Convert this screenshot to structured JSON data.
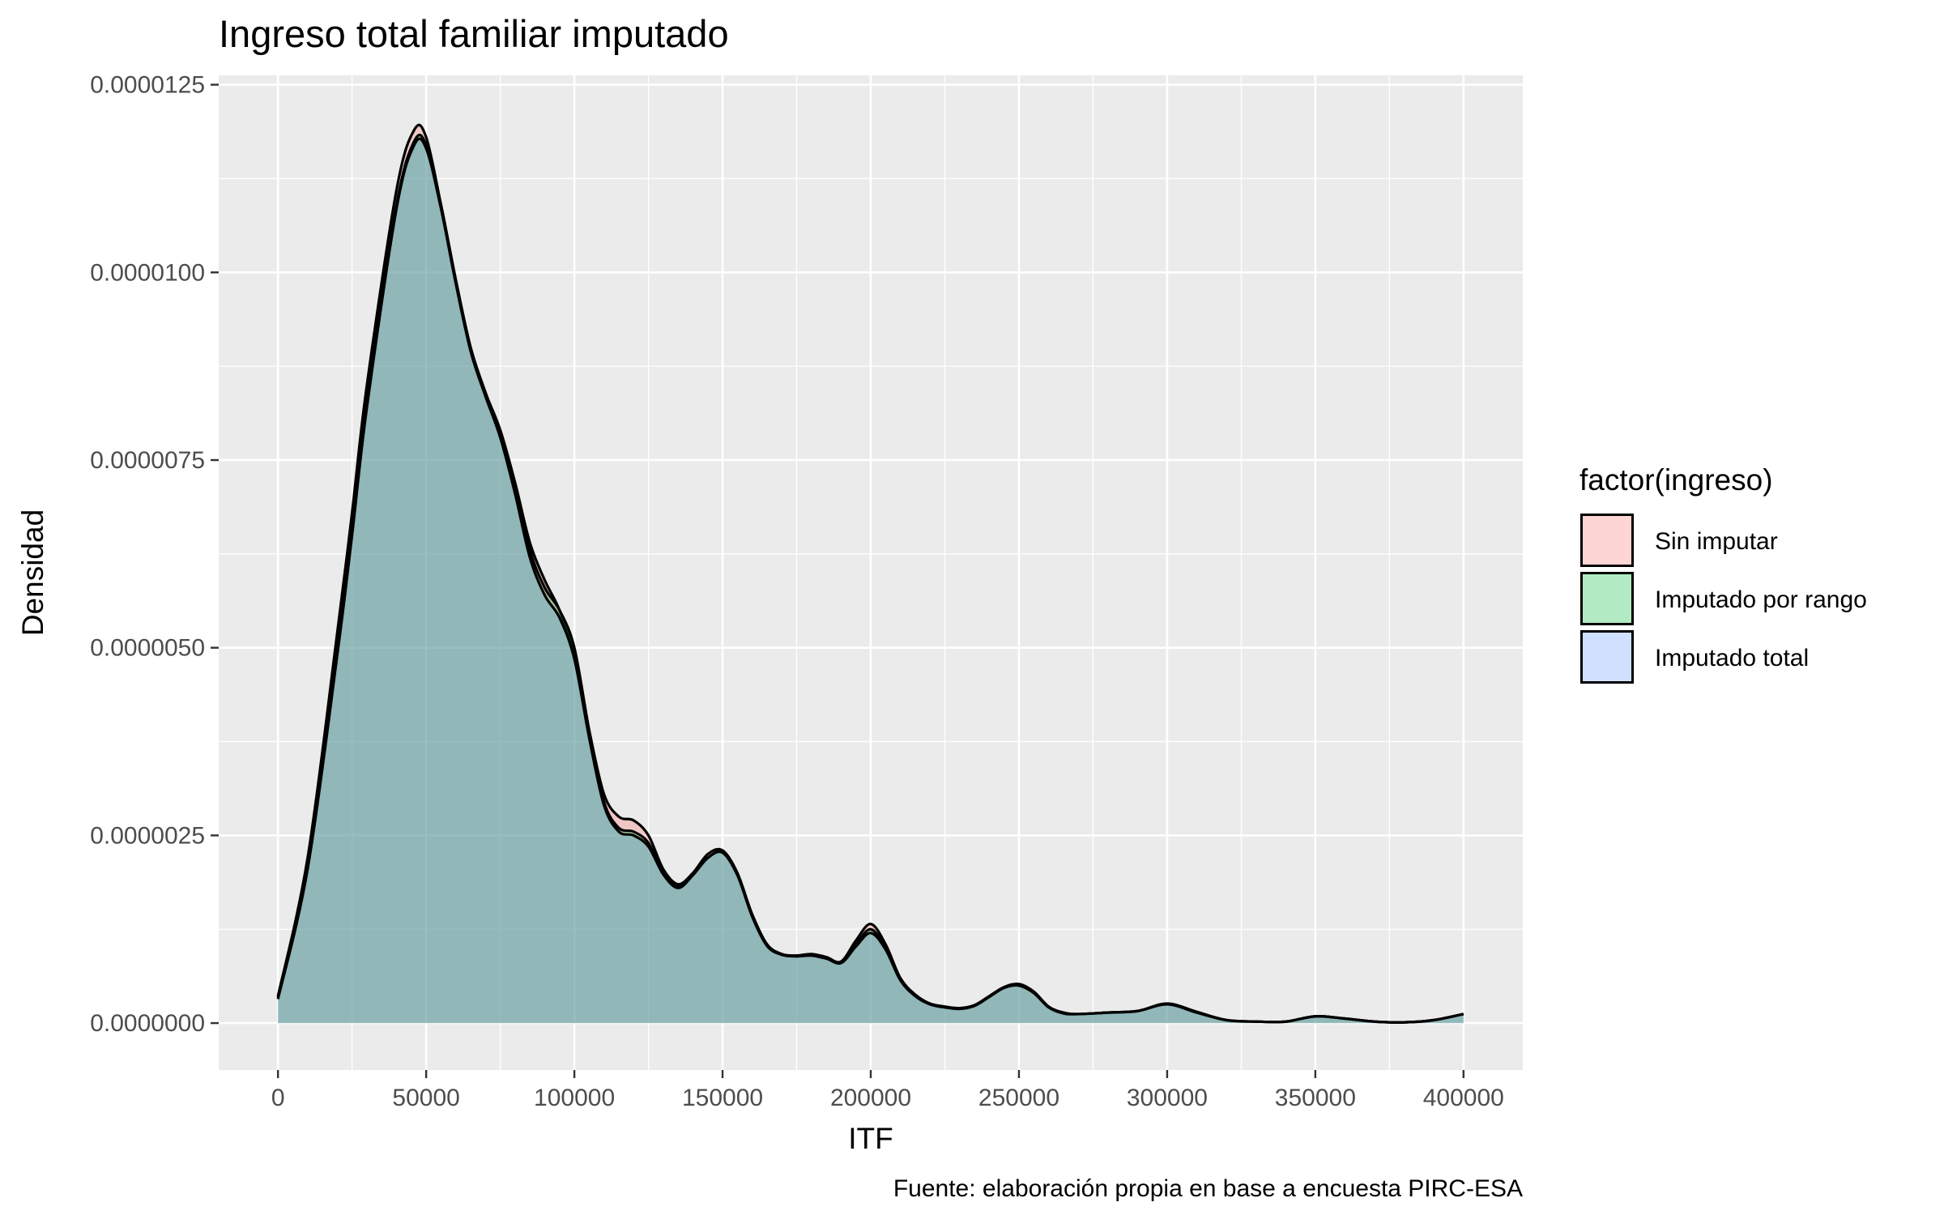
{
  "chart_data": {
    "type": "area",
    "title": "Ingreso total familiar imputado",
    "xlabel": "ITF",
    "ylabel": "Densidad",
    "caption": "Fuente: elaboración propia en base a encuesta PIRC-ESA",
    "xlim": [
      -20000,
      420000
    ],
    "ylim": [
      -6.25e-07,
      1.2625e-05
    ],
    "x_ticks": [
      0,
      50000,
      100000,
      150000,
      200000,
      250000,
      300000,
      350000,
      400000
    ],
    "x_tick_labels": [
      "0",
      "50000",
      "100000",
      "150000",
      "200000",
      "250000",
      "300000",
      "350000",
      "400000"
    ],
    "y_ticks": [
      0,
      2.5e-06,
      5e-06,
      7.5e-06,
      1e-05,
      1.25e-05
    ],
    "y_tick_labels": [
      "0.0000000",
      "0.0000025",
      "0.0000050",
      "0.0000075",
      "0.0000100",
      "0.0000125"
    ],
    "grid": true,
    "legend": {
      "title": "factor(ingreso)",
      "position": "right"
    },
    "series": [
      {
        "name": "Sin imputar",
        "fill": "#F8766D",
        "x": [
          0,
          10000,
          20000,
          25000,
          30000,
          40000,
          46000,
          50000,
          55000,
          60000,
          65000,
          70000,
          75000,
          80000,
          85000,
          90000,
          95000,
          100000,
          105000,
          110000,
          115000,
          120000,
          125000,
          130000,
          135000,
          140000,
          145000,
          150000,
          155000,
          160000,
          165000,
          170000,
          175000,
          180000,
          185000,
          190000,
          195000,
          200000,
          205000,
          210000,
          215000,
          220000,
          225000,
          230000,
          235000,
          240000,
          245000,
          250000,
          255000,
          260000,
          265000,
          270000,
          280000,
          290000,
          300000,
          310000,
          320000,
          330000,
          340000,
          350000,
          360000,
          370000,
          380000,
          390000,
          400000
        ],
        "y": [
          3.6e-07,
          2.2e-06,
          5.2e-06,
          6.8e-06,
          8.5e-06,
          1.11e-05,
          1.19e-05,
          1.18e-05,
          1.09e-05,
          9.9e-06,
          9e-06,
          8.4e-06,
          7.9e-06,
          7.2e-06,
          6.4e-06,
          5.9e-06,
          5.5e-06,
          4.9e-06,
          3.9e-06,
          3.05e-06,
          2.75e-06,
          2.7e-06,
          2.5e-06,
          2.05e-06,
          1.85e-06,
          2e-06,
          2.25e-06,
          2.3e-06,
          2e-06,
          1.45e-06,
          1.05e-06,
          9.2e-07,
          9e-07,
          9.2e-07,
          8.8e-07,
          8.2e-07,
          1.1e-06,
          1.32e-06,
          1.05e-06,
          6e-07,
          3.8e-07,
          2.6e-07,
          2.2e-07,
          2e-07,
          2.4e-07,
          3.6e-07,
          4.8e-07,
          5.2e-07,
          4.2e-07,
          2.2e-07,
          1.4e-07,
          1.2e-07,
          1.4e-07,
          1.6e-07,
          2.6e-07,
          1.5e-07,
          4e-08,
          2e-08,
          2e-08,
          9e-08,
          6e-08,
          2e-08,
          1e-08,
          4e-08,
          1.2e-07
        ]
      },
      {
        "name": "Imputado por rango",
        "fill": "#00BA38",
        "x": [
          0,
          10000,
          20000,
          25000,
          30000,
          40000,
          46000,
          50000,
          55000,
          60000,
          65000,
          70000,
          75000,
          80000,
          85000,
          90000,
          95000,
          100000,
          105000,
          110000,
          115000,
          120000,
          125000,
          130000,
          135000,
          140000,
          145000,
          150000,
          155000,
          160000,
          165000,
          170000,
          175000,
          180000,
          185000,
          190000,
          195000,
          200000,
          205000,
          210000,
          215000,
          220000,
          225000,
          230000,
          235000,
          240000,
          245000,
          250000,
          255000,
          260000,
          265000,
          270000,
          280000,
          290000,
          300000,
          310000,
          320000,
          330000,
          340000,
          350000,
          360000,
          370000,
          380000,
          390000,
          400000
        ],
        "y": [
          3.4e-07,
          2.1e-06,
          5e-06,
          6.6e-06,
          8.3e-06,
          1.09e-05,
          1.175e-05,
          1.17e-05,
          1.09e-05,
          9.9e-06,
          9e-06,
          8.4e-06,
          7.85e-06,
          7.15e-06,
          6.3e-06,
          5.8e-06,
          5.5e-06,
          5e-06,
          3.9e-06,
          2.95e-06,
          2.6e-06,
          2.55e-06,
          2.4e-06,
          2e-06,
          1.82e-06,
          1.98e-06,
          2.2e-06,
          2.28e-06,
          1.98e-06,
          1.42e-06,
          1.03e-06,
          9.1e-07,
          8.9e-07,
          9e-07,
          8.6e-07,
          8.1e-07,
          1.05e-06,
          1.25e-06,
          1e-06,
          5.8e-07,
          3.7e-07,
          2.5e-07,
          2.1e-07,
          1.9e-07,
          2.3e-07,
          3.5e-07,
          4.7e-07,
          5.1e-07,
          4.1e-07,
          2.1e-07,
          1.3e-07,
          1.2e-07,
          1.4e-07,
          1.6e-07,
          2.5e-07,
          1.4e-07,
          4e-08,
          2e-08,
          2e-08,
          9e-08,
          6e-08,
          2e-08,
          1e-08,
          4e-08,
          1.2e-07
        ]
      },
      {
        "name": "Imputado total",
        "fill": "#619CFF",
        "x": [
          0,
          10000,
          20000,
          25000,
          30000,
          40000,
          46000,
          50000,
          55000,
          60000,
          65000,
          70000,
          75000,
          80000,
          85000,
          90000,
          95000,
          100000,
          105000,
          110000,
          115000,
          120000,
          125000,
          130000,
          135000,
          140000,
          145000,
          150000,
          155000,
          160000,
          165000,
          170000,
          175000,
          180000,
          185000,
          190000,
          195000,
          200000,
          205000,
          210000,
          215000,
          220000,
          225000,
          230000,
          235000,
          240000,
          245000,
          250000,
          255000,
          260000,
          265000,
          270000,
          280000,
          290000,
          300000,
          310000,
          320000,
          330000,
          340000,
          350000,
          360000,
          370000,
          380000,
          390000,
          400000
        ],
        "y": [
          3.2e-07,
          2.05e-06,
          4.9e-06,
          6.5e-06,
          8.2e-06,
          1.085e-05,
          1.17e-05,
          1.165e-05,
          1.085e-05,
          9.85e-06,
          8.95e-06,
          8.35e-06,
          7.8e-06,
          7.05e-06,
          6.2e-06,
          5.7e-06,
          5.4e-06,
          4.85e-06,
          3.8e-06,
          2.9e-06,
          2.55e-06,
          2.5e-06,
          2.35e-06,
          1.98e-06,
          1.8e-06,
          1.97e-06,
          2.2e-06,
          2.27e-06,
          1.97e-06,
          1.42e-06,
          1.03e-06,
          9.1e-07,
          8.9e-07,
          9e-07,
          8.6e-07,
          8e-07,
          1.02e-06,
          1.2e-06,
          9.8e-07,
          5.7e-07,
          3.6e-07,
          2.5e-07,
          2.1e-07,
          1.9e-07,
          2.3e-07,
          3.5e-07,
          4.7e-07,
          5e-07,
          4e-07,
          2.1e-07,
          1.3e-07,
          1.2e-07,
          1.4e-07,
          1.6e-07,
          2.5e-07,
          1.4e-07,
          4e-08,
          2e-08,
          2e-08,
          9e-08,
          6e-08,
          2e-08,
          1e-08,
          4e-08,
          1.2e-07
        ]
      }
    ]
  }
}
